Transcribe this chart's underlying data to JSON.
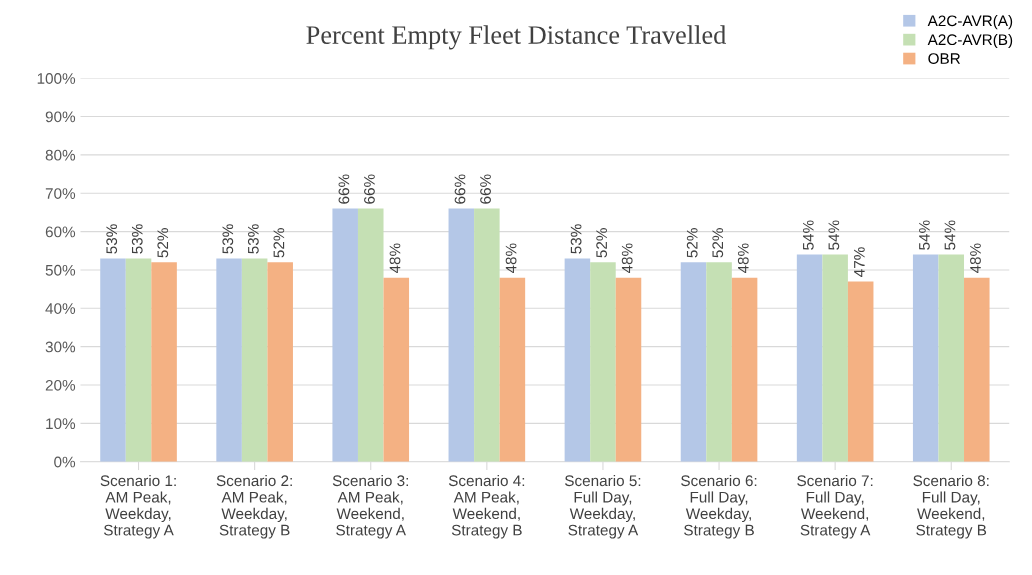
{
  "chart_data": {
    "type": "bar",
    "title": "Percent Empty Fleet Distance Travelled",
    "categories": [
      "Scenario 1:\nAM Peak,\nWeekday,\nStrategy A",
      "Scenario 2:\nAM Peak,\nWeekday,\nStrategy B",
      "Scenario 3:\nAM Peak,\nWeekend,\nStrategy A",
      "Scenario 4:\nAM Peak,\nWeekend,\nStrategy B",
      "Scenario 5:\nFull Day,\nWeekday,\nStrategy A",
      "Scenario 6:\nFull Day,\nWeekday,\nStrategy B",
      "Scenario 7:\nFull Day,\nWeekend,\nStrategy A",
      "Scenario 8:\nFull Day,\nWeekend,\nStrategy B"
    ],
    "series": [
      {
        "name": "A2C-AVR(A)",
        "color": "#b4c7e7",
        "values": [
          53,
          53,
          66,
          66,
          53,
          52,
          54,
          54
        ],
        "value_labels": [
          "53%",
          "53%",
          "66%",
          "66%",
          "53%",
          "52%",
          "54%",
          "54%"
        ]
      },
      {
        "name": "A2C-AVR(B)",
        "color": "#c5e0b4",
        "values": [
          53,
          53,
          66,
          66,
          52,
          52,
          54,
          54
        ],
        "value_labels": [
          "53%",
          "53%",
          "66%",
          "66%",
          "52%",
          "52%",
          "54%",
          "54%"
        ]
      },
      {
        "name": "OBR",
        "color": "#f4b183",
        "values": [
          52,
          52,
          48,
          48,
          48,
          48,
          47,
          48
        ],
        "value_labels": [
          "52%",
          "52%",
          "48%",
          "48%",
          "48%",
          "48%",
          "47%",
          "48%"
        ]
      }
    ],
    "ylim": [
      0,
      100
    ],
    "yticks": [
      {
        "value": 0,
        "label": "0%"
      },
      {
        "value": 10,
        "label": "10%"
      },
      {
        "value": 20,
        "label": "20%"
      },
      {
        "value": 30,
        "label": "30%"
      },
      {
        "value": 40,
        "label": "40%"
      },
      {
        "value": 50,
        "label": "50%"
      },
      {
        "value": 60,
        "label": "60%"
      },
      {
        "value": 70,
        "label": "70%"
      },
      {
        "value": 80,
        "label": "80%"
      },
      {
        "value": 90,
        "label": "90%"
      },
      {
        "value": 100,
        "label": "100%"
      }
    ],
    "grid": "y",
    "legend": "top right"
  }
}
